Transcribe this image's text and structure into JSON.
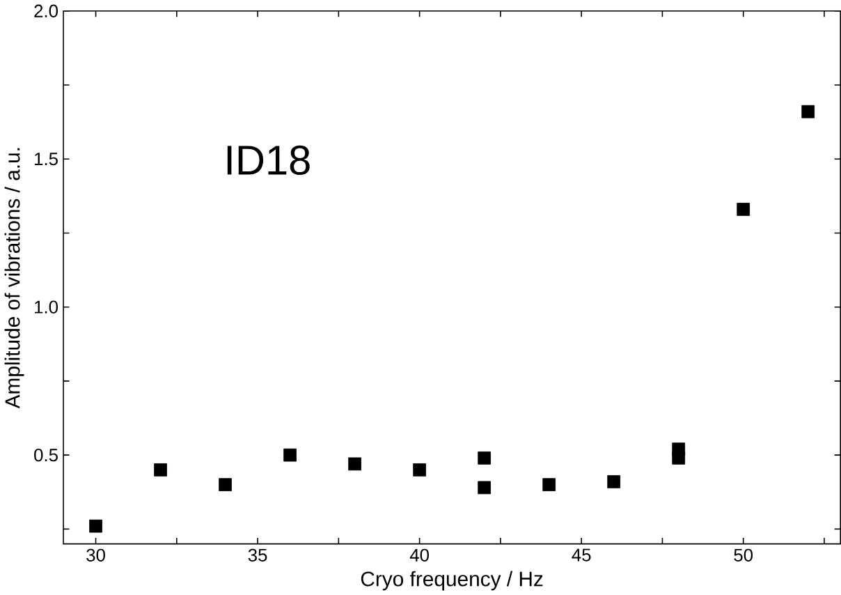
{
  "chart_data": {
    "type": "scatter",
    "xlabel": "Cryo frequency / Hz",
    "ylabel": "Amplitude of vibrations / a.u.",
    "annotations": [
      "ID18"
    ],
    "x": [
      30,
      32,
      34,
      36,
      38,
      40,
      42,
      42,
      44,
      46,
      48,
      48,
      50,
      52
    ],
    "values": [
      0.26,
      0.45,
      0.4,
      0.5,
      0.47,
      0.45,
      0.49,
      0.39,
      0.4,
      0.41,
      0.52,
      0.49,
      1.33,
      1.66
    ],
    "color": "#000000",
    "marker": "square",
    "xlim": [
      29,
      53
    ],
    "ylim": [
      0.2,
      2.0
    ],
    "xticks": [
      30,
      {
        "value": 32.5,
        "label": null
      },
      35,
      {
        "value": 37.5,
        "label": null
      },
      40,
      {
        "value": 42.5,
        "label": null
      },
      45,
      {
        "value": 47.5,
        "label": null
      },
      50,
      {
        "value": 52.5,
        "label": null
      }
    ],
    "yticks": [
      {
        "value": 0.25,
        "label": null
      },
      0.5,
      {
        "value": 0.75,
        "label": null
      },
      {
        "value": 1.0,
        "label": "1.0"
      },
      {
        "value": 1.25,
        "label": null
      },
      1.5,
      {
        "value": 1.75,
        "label": null
      },
      {
        "value": 2.0,
        "label": "2.0"
      }
    ]
  }
}
